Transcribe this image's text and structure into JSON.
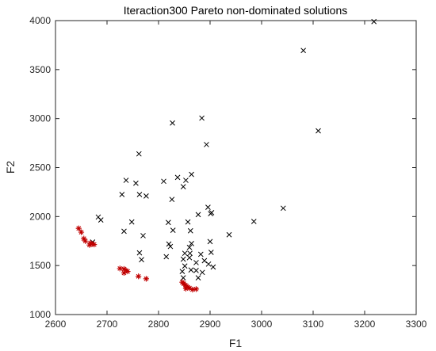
{
  "chart_data": {
    "type": "scatter",
    "title": "Iteraction300 Pareto non-dominated solutions",
    "xlabel": "F1",
    "ylabel": "F2",
    "xlim": [
      2600,
      3300
    ],
    "ylim": [
      1000,
      4000
    ],
    "xticks": [
      2600,
      2700,
      2800,
      2900,
      3000,
      3100,
      3200,
      3300
    ],
    "yticks": [
      1000,
      1500,
      2000,
      2500,
      3000,
      3500,
      4000
    ],
    "grid": false,
    "series": [
      {
        "marker": "x",
        "color": "#000000",
        "points": [
          [
            3218,
            3990
          ],
          [
            3081,
            3695
          ],
          [
            3110,
            2875
          ],
          [
            2884,
            3005
          ],
          [
            2827,
            2955
          ],
          [
            2893,
            2735
          ],
          [
            2762,
            2640
          ],
          [
            2837,
            2400
          ],
          [
            2853,
            2370
          ],
          [
            2864,
            2430
          ],
          [
            2737,
            2370
          ],
          [
            2756,
            2340
          ],
          [
            2810,
            2360
          ],
          [
            2848,
            2305
          ],
          [
            2763,
            2225
          ],
          [
            2729,
            2225
          ],
          [
            2776,
            2210
          ],
          [
            2826,
            2175
          ],
          [
            2896,
            2095
          ],
          [
            2901,
            2030
          ],
          [
            2903,
            2040
          ],
          [
            3042,
            2085
          ],
          [
            2683,
            1995
          ],
          [
            2688,
            1965
          ],
          [
            2877,
            2020
          ],
          [
            2748,
            1945
          ],
          [
            2819,
            1940
          ],
          [
            2857,
            1945
          ],
          [
            2985,
            1950
          ],
          [
            2733,
            1850
          ],
          [
            2770,
            1805
          ],
          [
            2828,
            1860
          ],
          [
            2862,
            1855
          ],
          [
            2937,
            1815
          ],
          [
            2820,
            1720
          ],
          [
            2823,
            1695
          ],
          [
            2864,
            1725
          ],
          [
            2860,
            1685
          ],
          [
            2900,
            1745
          ],
          [
            2672,
            1740
          ],
          [
            2763,
            1630
          ],
          [
            2815,
            1590
          ],
          [
            2851,
            1625
          ],
          [
            2861,
            1625
          ],
          [
            2882,
            1615
          ],
          [
            2767,
            1560
          ],
          [
            2848,
            1565
          ],
          [
            2860,
            1580
          ],
          [
            2873,
            1530
          ],
          [
            2902,
            1635
          ],
          [
            2889,
            1550
          ],
          [
            2897,
            1515
          ],
          [
            2906,
            1485
          ],
          [
            2851,
            1495
          ],
          [
            2863,
            1455
          ],
          [
            2873,
            1450
          ],
          [
            2885,
            1430
          ],
          [
            2877,
            1375
          ],
          [
            2848,
            1375
          ],
          [
            2846,
            1440
          ]
        ]
      },
      {
        "marker": "*",
        "color": "#c00000",
        "points": [
          [
            2645,
            1880
          ],
          [
            2650,
            1840
          ],
          [
            2655,
            1775
          ],
          [
            2658,
            1750
          ],
          [
            2668,
            1730
          ],
          [
            2671,
            1720
          ],
          [
            2675,
            1715
          ],
          [
            2666,
            1710
          ],
          [
            2725,
            1470
          ],
          [
            2733,
            1465
          ],
          [
            2737,
            1450
          ],
          [
            2740,
            1440
          ],
          [
            2733,
            1425
          ],
          [
            2761,
            1390
          ],
          [
            2776,
            1365
          ],
          [
            2846,
            1330
          ],
          [
            2849,
            1315
          ],
          [
            2852,
            1300
          ],
          [
            2854,
            1290
          ],
          [
            2857,
            1280
          ],
          [
            2860,
            1270
          ],
          [
            2853,
            1265
          ],
          [
            2873,
            1260
          ],
          [
            2866,
            1255
          ]
        ]
      }
    ]
  }
}
